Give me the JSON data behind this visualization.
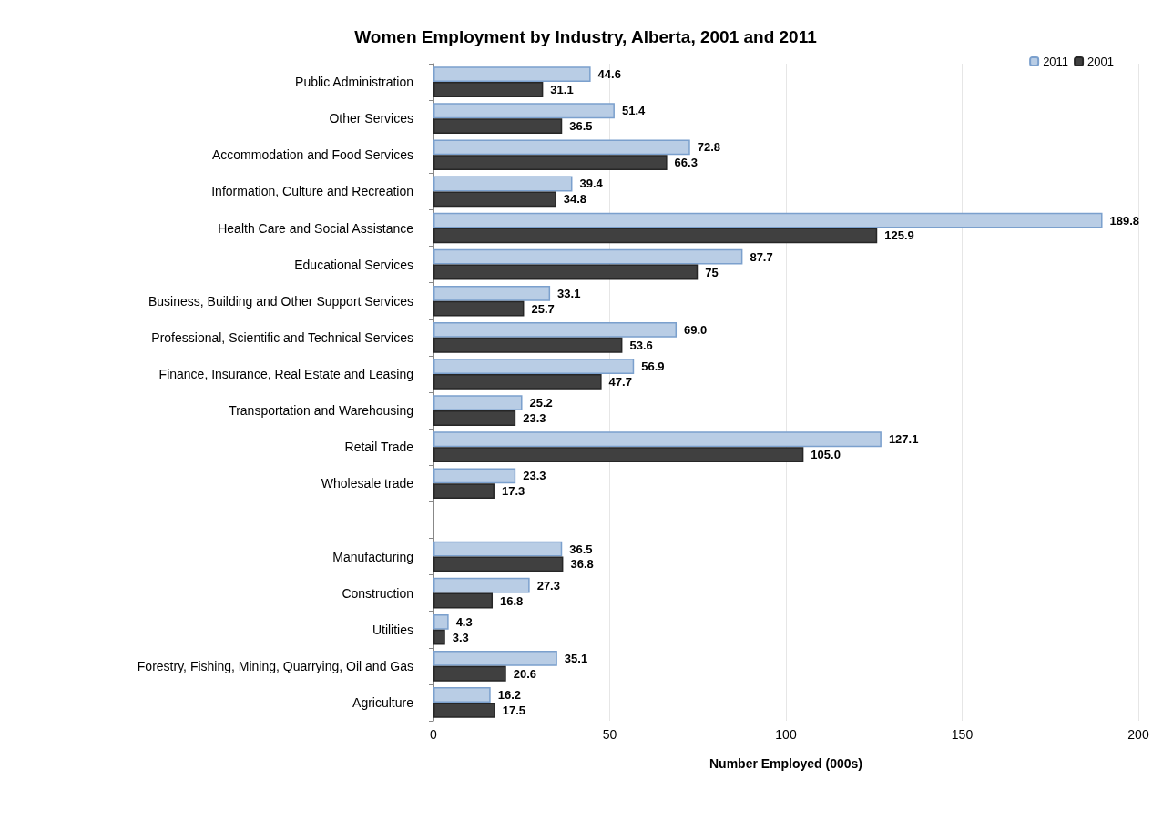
{
  "chart_data": {
    "type": "bar",
    "orientation": "horizontal",
    "title": "Women Employment by Industry, Alberta, 2001 and 2011",
    "xlabel": "Number Employed (000s)",
    "categories": [
      "Public Administration",
      "Other Services",
      "Accommodation and Food Services",
      "Information, Culture and Recreation",
      "Health Care and Social Assistance",
      "Educational Services",
      "Business, Building and Other Support Services",
      "Professional, Scientific and Technical Services",
      "Finance, Insurance, Real Estate and Leasing",
      "Transportation and Warehousing",
      "Retail Trade",
      "Wholesale trade",
      null,
      "Manufacturing",
      "Construction",
      "Utilities",
      "Forestry, Fishing, Mining, Quarrying, Oil and Gas",
      "Agriculture"
    ],
    "series": [
      {
        "name": "2011",
        "color": "#b9cde5",
        "values": [
          44.6,
          51.4,
          72.8,
          39.4,
          189.8,
          87.7,
          33.1,
          69.0,
          56.9,
          25.2,
          127.1,
          23.3,
          null,
          36.5,
          27.3,
          4.3,
          35.1,
          16.2
        ],
        "value_labels": [
          "44.6",
          "51.4",
          "72.8",
          "39.4",
          "189.8",
          "87.7",
          "33.1",
          "69.0",
          "56.9",
          "25.2",
          "127.1",
          "23.3",
          null,
          "36.5",
          "27.3",
          "4.3",
          "35.1",
          "16.2"
        ]
      },
      {
        "name": "2001",
        "color": "#404040",
        "values": [
          31.1,
          36.5,
          66.3,
          34.8,
          125.9,
          75,
          25.7,
          53.6,
          47.7,
          23.3,
          105.0,
          17.3,
          null,
          36.8,
          16.8,
          3.3,
          20.6,
          17.5
        ],
        "value_labels": [
          "31.1",
          "36.5",
          "66.3",
          "34.8",
          "125.9",
          "75",
          "25.7",
          "53.6",
          "47.7",
          "23.3",
          "105.0",
          "17.3",
          null,
          "36.8",
          "16.8",
          "3.3",
          "20.6",
          "17.5"
        ]
      }
    ],
    "xlim": [
      0,
      200
    ],
    "xticks": [
      0,
      50,
      100,
      150,
      200
    ],
    "grid": "x",
    "legend": "top right"
  }
}
